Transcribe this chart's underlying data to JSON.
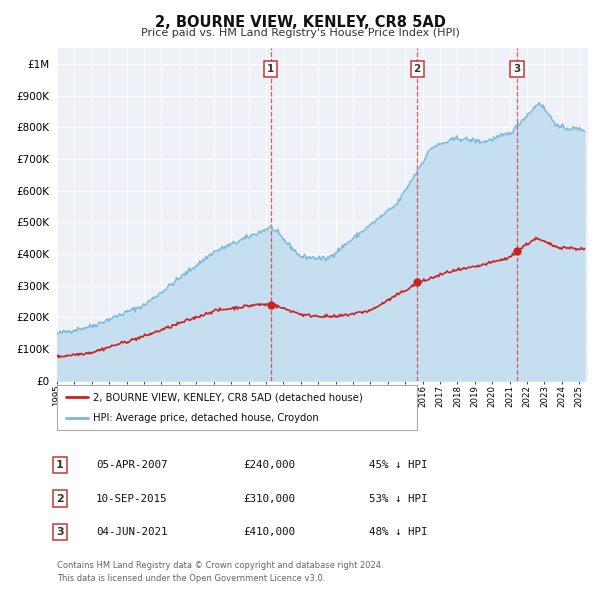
{
  "title": "2, BOURNE VIEW, KENLEY, CR8 5AD",
  "subtitle": "Price paid vs. HM Land Registry's House Price Index (HPI)",
  "legend_label_red": "2, BOURNE VIEW, KENLEY, CR8 5AD (detached house)",
  "legend_label_blue": "HPI: Average price, detached house, Croydon",
  "footer_line1": "Contains HM Land Registry data © Crown copyright and database right 2024.",
  "footer_line2": "This data is licensed under the Open Government Licence v3.0.",
  "transactions": [
    {
      "num": "1",
      "date": "05-APR-2007",
      "price": "£240,000",
      "pct": "45% ↓ HPI",
      "year": 2007.27
    },
    {
      "num": "2",
      "date": "10-SEP-2015",
      "price": "£310,000",
      "pct": "53% ↓ HPI",
      "year": 2015.69
    },
    {
      "num": "3",
      "date": "04-JUN-2021",
      "price": "£410,000",
      "pct": "48% ↓ HPI",
      "year": 2021.42
    }
  ],
  "transaction_values": [
    240000,
    310000,
    410000
  ],
  "hpi_color": "#7ab8d9",
  "hpi_fill_color": "#c5dff0",
  "red_color": "#cc2222",
  "dot_color": "#cc2222",
  "vline_color": "#cc4444",
  "plot_bg": "#eef2f8",
  "grid_color": "#ffffff",
  "ylim_max": 1050000,
  "xlim_min": 1995.0,
  "xlim_max": 2025.5
}
